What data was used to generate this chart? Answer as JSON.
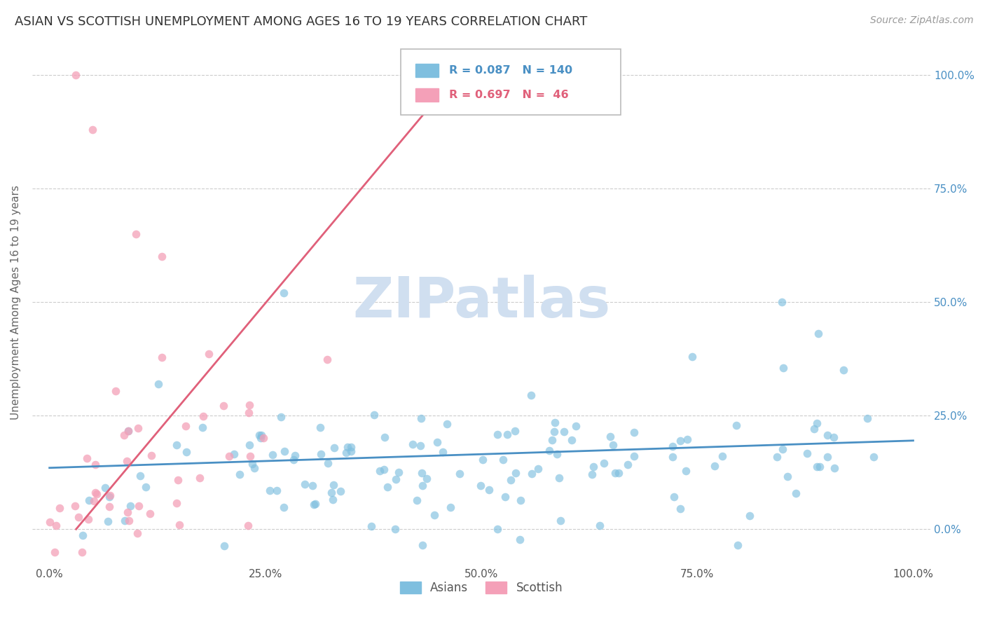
{
  "title": "ASIAN VS SCOTTISH UNEMPLOYMENT AMONG AGES 16 TO 19 YEARS CORRELATION CHART",
  "source": "Source: ZipAtlas.com",
  "ylabel": "Unemployment Among Ages 16 to 19 years",
  "xlabel": "",
  "xlim": [
    -0.02,
    1.02
  ],
  "ylim": [
    -0.08,
    1.08
  ],
  "asian_color": "#7fbfdf",
  "scottish_color": "#f4a0b8",
  "asian_R": 0.087,
  "asian_N": 140,
  "scottish_R": 0.697,
  "scottish_N": 46,
  "asian_trend_color": "#4a90c4",
  "scottish_trend_color": "#e0607a",
  "watermark": "ZIPatlas",
  "watermark_color": "#d0dff0",
  "background_color": "#ffffff",
  "grid_color": "#cccccc",
  "title_fontsize": 13,
  "source_fontsize": 10,
  "xtick_labels": [
    "0.0%",
    "25.0%",
    "50.0%",
    "75.0%",
    "100.0%"
  ],
  "xtick_vals": [
    0.0,
    0.25,
    0.5,
    0.75,
    1.0
  ],
  "ytick_labels": [
    "0.0%",
    "25.0%",
    "50.0%",
    "75.0%",
    "100.0%"
  ],
  "ytick_vals": [
    0.0,
    0.25,
    0.5,
    0.75,
    1.0
  ]
}
